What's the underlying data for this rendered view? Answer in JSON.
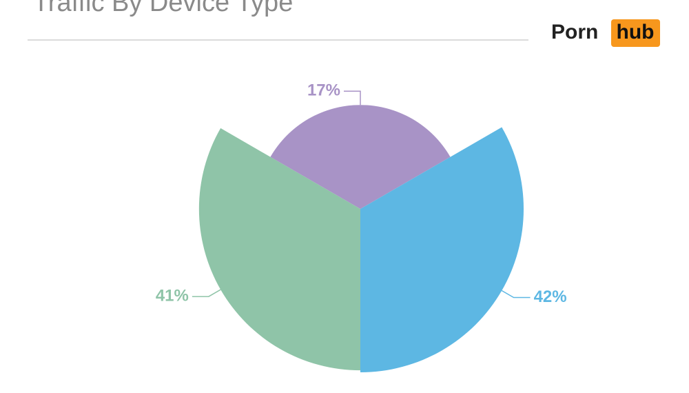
{
  "chart_data": {
    "type": "rose-pie",
    "title": "Traffic By Device Type",
    "values": [
      17,
      42,
      41
    ],
    "value_labels": [
      "17%",
      "42%",
      "41%"
    ],
    "colors": [
      "#a893c6",
      "#5db7e3",
      "#8fc4a8"
    ]
  },
  "logo": {
    "left": "Porn",
    "right": "hub"
  }
}
